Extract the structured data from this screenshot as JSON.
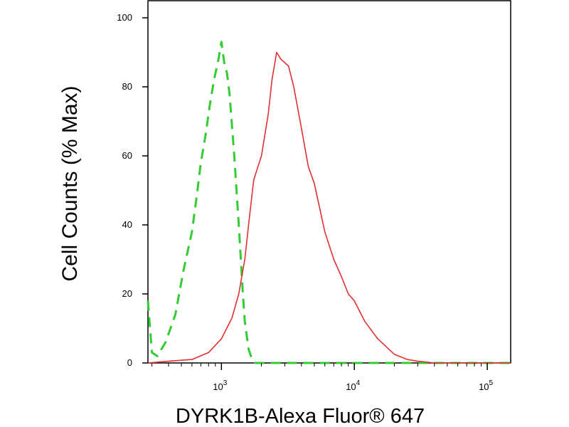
{
  "chart_data": {
    "type": "line",
    "title": "",
    "xlabel": "DYRK1B-Alexa Fluor® 647",
    "ylabel": "Cell Counts (% Max)",
    "x_scale": "log",
    "xlim": [
      280,
      150000
    ],
    "ylim": [
      0,
      105
    ],
    "yticks": [
      0,
      20,
      40,
      60,
      80,
      100
    ],
    "ytick_labels": [
      "0",
      "20",
      "40",
      "60",
      "80",
      "100"
    ],
    "xticks": [
      {
        "base": "10",
        "exp": "3"
      },
      {
        "base": "10",
        "exp": "4"
      },
      {
        "base": "10",
        "exp": "5"
      }
    ],
    "xtick_values": [
      1000,
      10000,
      100000
    ],
    "grid": false,
    "legend": false,
    "series": [
      {
        "style": "dashed",
        "color": "#33cc33",
        "x": [
          280,
          300,
          330,
          380,
          450,
          520,
          600,
          650,
          700,
          760,
          820,
          880,
          950,
          1000,
          1050,
          1100,
          1150,
          1250,
          1350,
          1400,
          1450,
          1500,
          1600,
          1700,
          1800,
          2000,
          3000,
          150000
        ],
        "y": [
          18,
          3,
          2,
          6,
          14,
          27,
          38,
          48,
          58,
          66,
          75,
          82,
          88,
          93,
          87,
          84,
          78,
          60,
          40,
          30,
          20,
          12,
          4,
          1,
          0,
          0,
          0,
          0
        ]
      },
      {
        "style": "solid",
        "color": "#e03030",
        "x": [
          280,
          400,
          600,
          800,
          1000,
          1200,
          1350,
          1500,
          1600,
          1750,
          2000,
          2250,
          2400,
          2600,
          2800,
          3000,
          3200,
          3500,
          4000,
          4500,
          5000,
          6000,
          7000,
          8000,
          9000,
          10000,
          12000,
          15000,
          20000,
          25000,
          30000,
          40000,
          150000
        ],
        "y": [
          0,
          0.5,
          1,
          3,
          7,
          13,
          20,
          30,
          40,
          53,
          60,
          72,
          82,
          90,
          88,
          87,
          86,
          80,
          68,
          57,
          52,
          38,
          30,
          25,
          20,
          18,
          12,
          7,
          2.5,
          1,
          0.5,
          0,
          0
        ]
      }
    ]
  }
}
